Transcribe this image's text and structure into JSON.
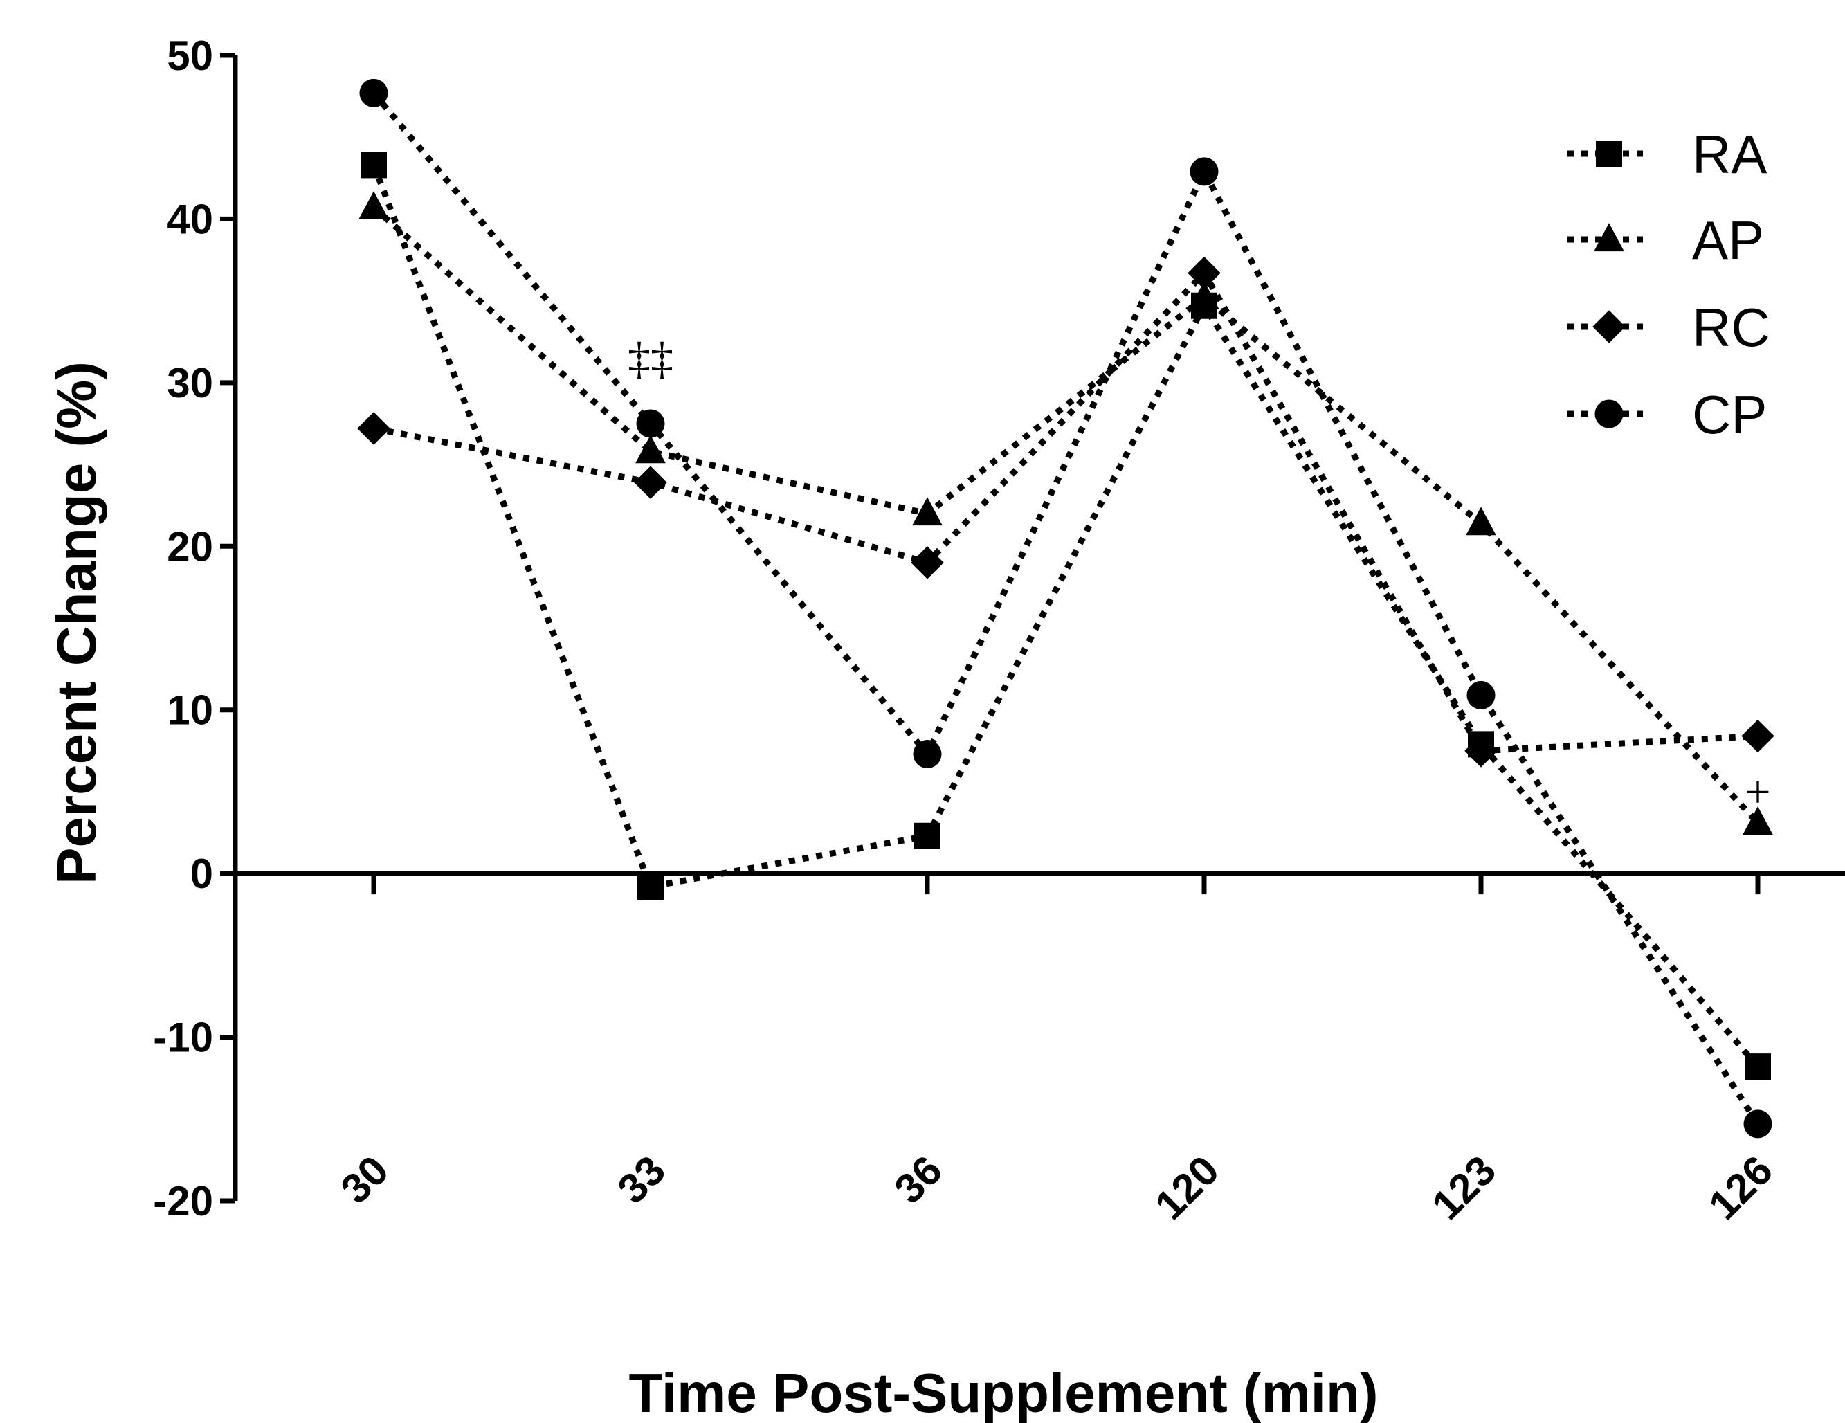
{
  "chart_data": {
    "type": "line",
    "xlabel": "Time Post-Supplement (min)",
    "ylabel": "Percent Change (%)",
    "categories": [
      "30",
      "33",
      "36",
      "120",
      "123",
      "126"
    ],
    "ylim": [
      -20,
      50
    ],
    "yticks": [
      -20,
      -10,
      0,
      10,
      20,
      30,
      40,
      50
    ],
    "line_style": "dotted",
    "grid": false,
    "legend_position": "top-right",
    "series": [
      {
        "name": "RA",
        "marker": "square",
        "values": [
          43.3,
          -0.8,
          2.3,
          34.7,
          7.9,
          -11.8
        ]
      },
      {
        "name": "AP",
        "marker": "triangle",
        "values": [
          40.7,
          25.8,
          22.0,
          35.2,
          21.4,
          3.1
        ]
      },
      {
        "name": "RC",
        "marker": "diamond",
        "values": [
          27.2,
          23.9,
          19.0,
          36.7,
          7.5,
          8.4
        ]
      },
      {
        "name": "CP",
        "marker": "circle",
        "values": [
          47.7,
          27.5,
          7.3,
          42.9,
          10.9,
          -15.3
        ]
      }
    ],
    "annotations": [
      {
        "text": "‡‡",
        "category": "33",
        "y": 31.5
      },
      {
        "text": "+",
        "category": "126",
        "y": 5.0
      }
    ]
  }
}
